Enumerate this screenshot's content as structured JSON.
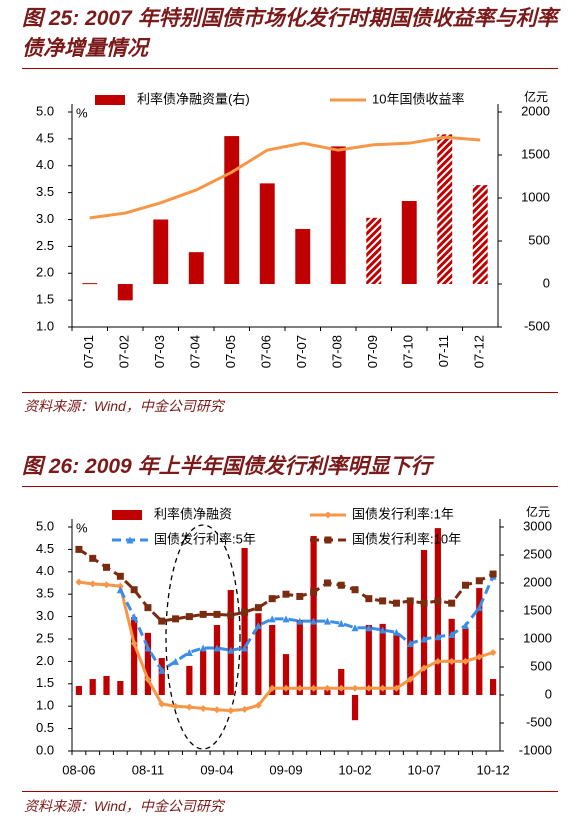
{
  "chart_data": [
    {
      "type": "combo",
      "title": "图 25: 2007 年特别国债市场化发行时期国债收益率与利率债净增量情况",
      "source": "资料来源：Wind，中金公司研究",
      "ylabel": "%",
      "y2label": "亿元",
      "categories": [
        "07-01",
        "07-02",
        "07-03",
        "07-04",
        "07-05",
        "07-06",
        "07-07",
        "07-08",
        "07-09",
        "07-10",
        "07-11",
        "07-12"
      ],
      "series": [
        {
          "name": "利率债净融资量(右)",
          "type": "bar",
          "axis": "y2",
          "color": "#c00000",
          "values": [
            10,
            -190,
            750,
            370,
            1720,
            1170,
            640,
            1600,
            770,
            965,
            1740,
            1150
          ],
          "hatched": [
            false,
            false,
            false,
            false,
            false,
            false,
            false,
            false,
            true,
            false,
            true,
            true
          ]
        },
        {
          "name": "10年国债收益率",
          "type": "line",
          "color": "#f79646",
          "values": [
            3.03,
            3.12,
            3.31,
            3.55,
            3.88,
            4.29,
            4.42,
            4.29,
            4.39,
            4.42,
            4.53,
            4.48
          ]
        }
      ],
      "ylim": [
        1,
        5
      ],
      "yticks": [
        {
          "value": 1,
          "label": "1.0"
        },
        1.5,
        {
          "value": 2,
          "label": "2.0"
        },
        2.5,
        {
          "value": 3,
          "label": "3.0"
        },
        3.5,
        {
          "value": 4,
          "label": "4.0"
        },
        4.5,
        {
          "value": 5,
          "label": "5.0"
        }
      ],
      "y2lim": [
        -500,
        2000
      ],
      "y2ticks": [
        -500,
        0,
        500,
        1000,
        1500,
        2000
      ]
    },
    {
      "type": "combo",
      "title": "图 26: 2009 年上半年国债发行利率明显下行",
      "source": "资料来源：Wind，中金公司研究",
      "ylabel": "%",
      "y2label": "亿元",
      "categories": [
        "08-06",
        null,
        null,
        null,
        null,
        "08-11",
        null,
        null,
        null,
        null,
        "09-04",
        null,
        null,
        null,
        null,
        "09-09",
        null,
        null,
        null,
        null,
        "10-02",
        null,
        null,
        null,
        null,
        "10-07",
        null,
        null,
        null,
        null,
        "10-12"
      ],
      "series": [
        {
          "name": "利率债净融资",
          "type": "bar",
          "axis": "y2",
          "color": "#c00000",
          "values": [
            160,
            285,
            340,
            250,
            1390,
            1110,
            660,
            null,
            520,
            800,
            1250,
            1875,
            2625,
            1460,
            1250,
            730,
            1340,
            2840,
            90,
            465,
            -450,
            1250,
            1270,
            1110,
            1625,
            2590,
            2980,
            1360,
            1200,
            1910,
            285
          ]
        },
        {
          "name": "国债发行利率:1年",
          "type": "line",
          "color": "#f79646",
          "marker": "diamond",
          "dash": false,
          "values": [
            3.77,
            3.73,
            3.71,
            3.68,
            2.4,
            1.6,
            1.05,
            1.0,
            0.98,
            0.95,
            0.92,
            0.9,
            0.93,
            1.02,
            1.4,
            1.4,
            1.4,
            1.4,
            1.4,
            1.4,
            1.4,
            1.4,
            1.4,
            1.4,
            1.6,
            1.85,
            2.0,
            2.0,
            2.0,
            2.1,
            2.2
          ]
        },
        {
          "name": "国债发行利率:5年",
          "type": "line",
          "color": "#3a8ee6",
          "marker": "triangle",
          "dash": true,
          "values": [
            null,
            null,
            null,
            3.6,
            3.0,
            2.3,
            1.8,
            2.0,
            2.2,
            2.3,
            2.3,
            2.25,
            2.3,
            2.8,
            2.95,
            2.95,
            2.9,
            2.9,
            2.9,
            2.85,
            2.75,
            2.75,
            2.7,
            2.65,
            2.4,
            2.5,
            2.55,
            2.6,
            2.8,
            3.2,
            3.9
          ]
        },
        {
          "name": "国债发行利率:10年",
          "type": "line",
          "color": "#7b2b10",
          "marker": "square",
          "dash": true,
          "values": [
            4.5,
            4.3,
            4.1,
            3.9,
            3.6,
            3.2,
            2.9,
            2.95,
            3.0,
            3.05,
            3.05,
            3.03,
            3.1,
            3.2,
            3.4,
            3.5,
            3.45,
            3.55,
            3.75,
            3.7,
            3.6,
            3.4,
            3.35,
            3.3,
            3.35,
            3.3,
            3.35,
            3.3,
            3.7,
            3.8,
            3.95
          ]
        }
      ],
      "ylim": [
        0,
        5
      ],
      "yticks": [
        {
          "value": 0,
          "label": "0.0"
        },
        0.5,
        {
          "value": 1,
          "label": "1.0"
        },
        1.5,
        {
          "value": 2,
          "label": "2.0"
        },
        2.5,
        {
          "value": 3,
          "label": "3.0"
        },
        3.5,
        {
          "value": 4,
          "label": "4.0"
        },
        4.5,
        {
          "value": 5,
          "label": "5.0"
        }
      ],
      "y2lim": [
        -1000,
        3000
      ],
      "y2ticks": [
        -1000,
        -500,
        0,
        500,
        1000,
        1500,
        2000,
        2500,
        3000
      ]
    }
  ]
}
